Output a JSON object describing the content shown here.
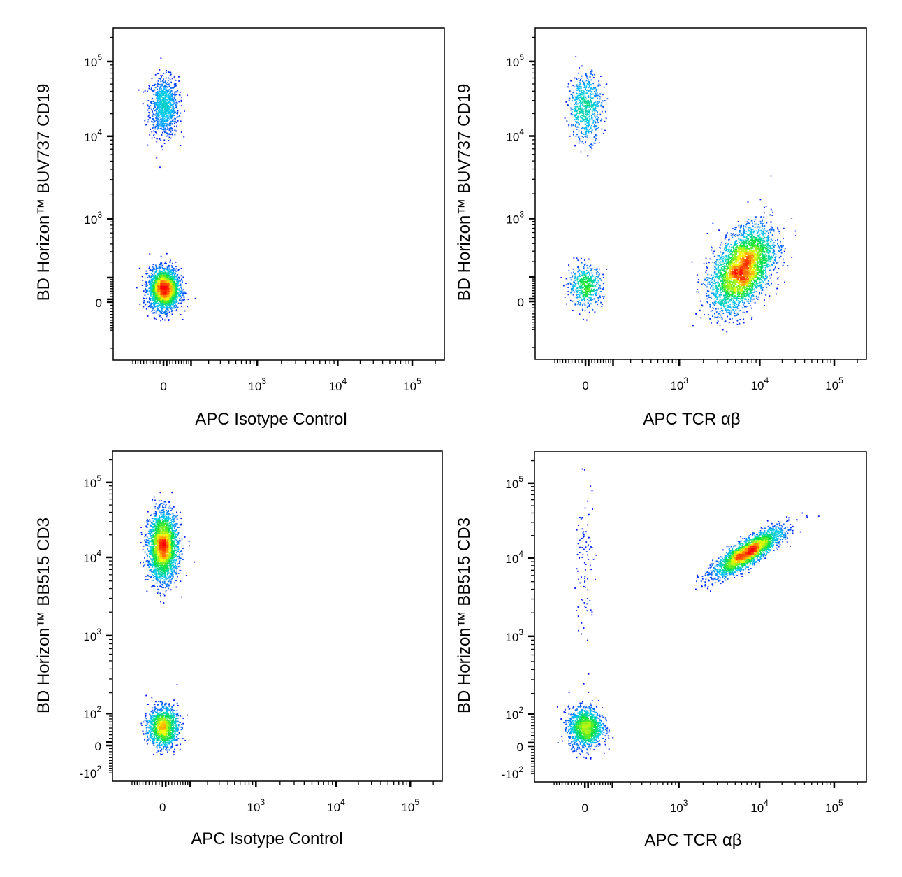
{
  "chart_data": [
    {
      "type": "scatter",
      "density_colored": true,
      "xlabel": "APC  Isotype Control",
      "ylabel": "BD Horizon™ BUV737 CD19",
      "x_scale": "biexponential",
      "y_scale": "biexponential",
      "x_ticks": [
        {
          "base": "0",
          "exp": ""
        },
        {
          "base": "10",
          "exp": "3"
        },
        {
          "base": "10",
          "exp": "4"
        },
        {
          "base": "10",
          "exp": "5"
        }
      ],
      "y_ticks": [
        {
          "base": "0",
          "exp": ""
        },
        {
          "base": "10",
          "exp": "3"
        },
        {
          "base": "10",
          "exp": "4"
        },
        {
          "base": "10",
          "exp": "5"
        }
      ],
      "populations": [
        {
          "x_center": 0,
          "y_center": 25000,
          "count": 900
        },
        {
          "x_center": 0,
          "y_center": 50,
          "count": 2600
        }
      ]
    },
    {
      "type": "scatter",
      "density_colored": true,
      "xlabel": "APC  TCR αβ",
      "ylabel": "BD Horizon™ BUV737 CD19",
      "x_scale": "biexponential",
      "y_scale": "biexponential",
      "x_ticks": [
        {
          "base": "0",
          "exp": ""
        },
        {
          "base": "10",
          "exp": "3"
        },
        {
          "base": "10",
          "exp": "4"
        },
        {
          "base": "10",
          "exp": "5"
        }
      ],
      "y_ticks": [
        {
          "base": "0",
          "exp": ""
        },
        {
          "base": "10",
          "exp": "3"
        },
        {
          "base": "10",
          "exp": "4"
        },
        {
          "base": "10",
          "exp": "5"
        }
      ],
      "populations": [
        {
          "x_center": 0,
          "y_center": 25000,
          "count": 600
        },
        {
          "x_center": 0,
          "y_center": 60,
          "count": 500
        },
        {
          "x_center": 6000,
          "y_center": 150,
          "count": 3400
        }
      ]
    },
    {
      "type": "scatter",
      "density_colored": true,
      "xlabel": "APC  Isotype Control",
      "ylabel": "BD Horizon™ BB515 CD3",
      "x_scale": "biexponential",
      "y_scale": "biexponential",
      "x_ticks": [
        {
          "base": "0",
          "exp": ""
        },
        {
          "base": "10",
          "exp": "3"
        },
        {
          "base": "10",
          "exp": "4"
        },
        {
          "base": "10",
          "exp": "5"
        }
      ],
      "y_ticks": [
        {
          "base": "-10",
          "exp": "2"
        },
        {
          "base": "0",
          "exp": ""
        },
        {
          "base": "10",
          "exp": "2"
        },
        {
          "base": "10",
          "exp": "3"
        },
        {
          "base": "10",
          "exp": "4"
        },
        {
          "base": "10",
          "exp": "5"
        }
      ],
      "populations": [
        {
          "x_center": 0,
          "y_center": 14000,
          "count": 2600
        },
        {
          "x_center": 0,
          "y_center": 55,
          "count": 1300
        }
      ]
    },
    {
      "type": "scatter",
      "density_colored": true,
      "xlabel": "APC  TCR αβ",
      "ylabel": "BD Horizon™ BB515 CD3",
      "x_scale": "biexponential",
      "y_scale": "biexponential",
      "x_ticks": [
        {
          "base": "0",
          "exp": ""
        },
        {
          "base": "10",
          "exp": "3"
        },
        {
          "base": "10",
          "exp": "4"
        },
        {
          "base": "10",
          "exp": "5"
        }
      ],
      "y_ticks": [
        {
          "base": "-10",
          "exp": "2"
        },
        {
          "base": "0",
          "exp": ""
        },
        {
          "base": "10",
          "exp": "2"
        },
        {
          "base": "10",
          "exp": "3"
        },
        {
          "base": "10",
          "exp": "4"
        },
        {
          "base": "10",
          "exp": "5"
        }
      ],
      "populations": [
        {
          "x_center": 0,
          "y_center": 55,
          "count": 1400
        },
        {
          "x_center": 7000,
          "y_center": 12000,
          "count": 2700
        },
        {
          "x_center": 0,
          "y_center": 8000,
          "count": 90
        }
      ]
    }
  ],
  "colors": {
    "low": "#0000ff",
    "mid_low": "#00c8ff",
    "mid": "#00e040",
    "mid_high": "#ffff00",
    "high": "#ff0000",
    "axis": "#000000"
  }
}
